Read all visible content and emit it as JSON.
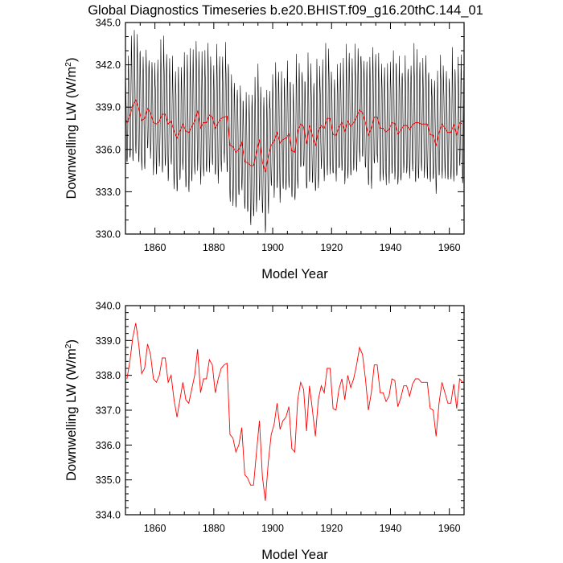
{
  "figure": {
    "title": "Global Diagnostics Timeseries b.e20.BHIST.f09_g16.20thC.144_01"
  },
  "chart_data": [
    {
      "type": "line",
      "xlabel": "Model Year",
      "ylabel": "Downwelling LW (W/m",
      "ylabel_superscript": "2",
      "ylabel_suffix": ")",
      "xlim": [
        1850,
        1965
      ],
      "ylim": [
        330.0,
        345.0
      ],
      "xticks": [
        1860,
        1880,
        1900,
        1920,
        1940,
        1960
      ],
      "yticks": [
        "330.0",
        "333.0",
        "336.0",
        "339.0",
        "342.0",
        "345.0"
      ],
      "series": [
        {
          "kind": "monthly",
          "color": "#000000",
          "seasonal_amplitude": 3.6,
          "x_start": 1850,
          "x_end": 1965
        },
        {
          "kind": "annual_mean",
          "color": "#ff0000",
          "x": [
            1850,
            1851,
            1852,
            1853,
            1854,
            1855,
            1856,
            1857,
            1858,
            1859,
            1860,
            1861,
            1862,
            1863,
            1864,
            1865,
            1866,
            1867,
            1868,
            1869,
            1870,
            1871,
            1872,
            1873,
            1874,
            1875,
            1876,
            1877,
            1878,
            1879,
            1880,
            1881,
            1882,
            1883,
            1884,
            1885,
            1886,
            1887,
            1888,
            1889,
            1890,
            1891,
            1892,
            1893,
            1894,
            1895,
            1896,
            1897,
            1898,
            1899,
            1900,
            1901,
            1902,
            1903,
            1904,
            1905,
            1906,
            1907,
            1908,
            1909,
            1910,
            1911,
            1912,
            1913,
            1914,
            1915,
            1916,
            1917,
            1918,
            1919,
            1920,
            1921,
            1922,
            1923,
            1924,
            1925,
            1926,
            1927,
            1928,
            1929,
            1930,
            1931,
            1932,
            1933,
            1934,
            1935,
            1936,
            1937,
            1938,
            1939,
            1940,
            1941,
            1942,
            1943,
            1944,
            1945,
            1946,
            1947,
            1948,
            1949,
            1950,
            1951,
            1952,
            1953,
            1954,
            1955,
            1956,
            1957,
            1958,
            1959,
            1960,
            1961,
            1962,
            1963,
            1964
          ],
          "values": [
            337.9,
            338.4,
            339.1,
            339.5,
            338.9,
            338.05,
            338.2,
            338.9,
            338.6,
            337.9,
            337.8,
            338.0,
            338.5,
            338.5,
            337.8,
            338.0,
            337.3,
            336.8,
            337.3,
            337.8,
            337.3,
            337.2,
            337.6,
            338.0,
            338.75,
            337.5,
            337.9,
            337.9,
            338.45,
            338.3,
            337.5,
            337.9,
            338.2,
            338.3,
            338.35,
            336.3,
            336.2,
            335.8,
            336.0,
            336.5,
            335.15,
            335.05,
            334.85,
            334.85,
            335.8,
            336.7,
            335.1,
            334.4,
            335.5,
            336.3,
            336.6,
            337.2,
            336.45,
            336.7,
            336.8,
            337.1,
            335.9,
            335.8,
            337.3,
            337.8,
            337.6,
            336.4,
            337.7,
            337.0,
            336.25,
            337.3,
            337.7,
            337.5,
            338.2,
            338.2,
            337.05,
            337.0,
            337.6,
            337.9,
            337.3,
            338.0,
            337.65,
            337.9,
            338.3,
            338.8,
            338.6,
            337.9,
            337.0,
            337.5,
            338.3,
            338.3,
            337.5,
            337.5,
            337.25,
            337.4,
            337.9,
            337.85,
            337.1,
            337.35,
            337.7,
            337.7,
            337.4,
            337.75,
            337.9,
            337.9,
            337.8,
            337.8,
            337.8,
            337.05,
            337.0,
            336.25,
            337.2,
            337.8,
            337.5,
            337.2,
            337.2,
            337.75,
            337.05,
            337.9,
            337.8
          ]
        }
      ]
    },
    {
      "type": "line",
      "xlabel": "Model Year",
      "ylabel": "Downwelling LW (W/m",
      "ylabel_superscript": "2",
      "ylabel_suffix": ")",
      "xlim": [
        1850,
        1965
      ],
      "ylim": [
        334.0,
        340.0
      ],
      "xticks": [
        1860,
        1880,
        1900,
        1920,
        1940,
        1960
      ],
      "yticks": [
        "334.0",
        "335.0",
        "336.0",
        "337.0",
        "338.0",
        "339.0",
        "340.0"
      ],
      "series": [
        {
          "kind": "annual_mean",
          "color": "#ff0000",
          "from_panel": 0
        }
      ]
    }
  ]
}
